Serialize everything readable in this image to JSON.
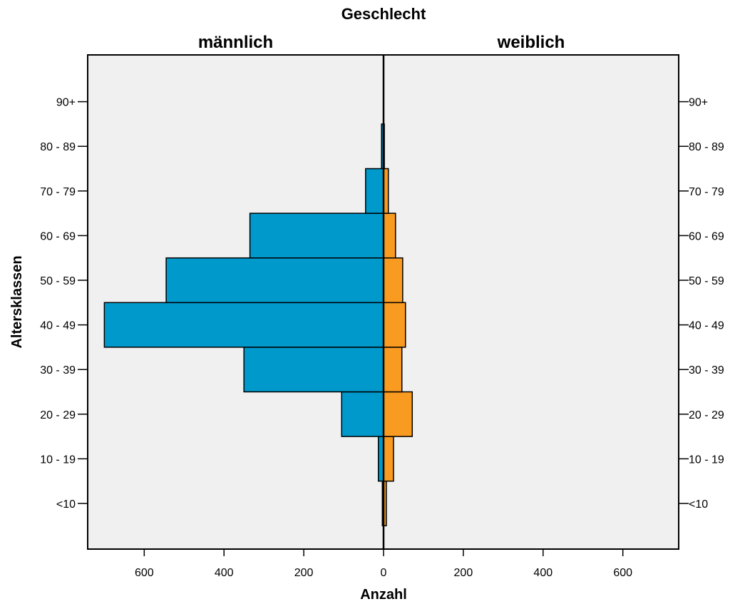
{
  "chart_data": {
    "type": "bar",
    "orientation": "horizontal-population-pyramid",
    "title": "Geschlecht",
    "xlabel": "Anzahl",
    "ylabel": "Altersklassen",
    "categories": [
      "<10",
      "10 - 19",
      "20 - 29",
      "30 - 39",
      "40 - 49",
      "50 - 59",
      "60 - 69",
      "70 - 79",
      "80 - 89",
      "90+"
    ],
    "series": [
      {
        "name": "männlich",
        "color": "#0099cc",
        "values": [
          3,
          13,
          105,
          350,
          700,
          545,
          335,
          45,
          5,
          0
        ]
      },
      {
        "name": "weiblich",
        "color": "#f99b21",
        "values": [
          7,
          25,
          72,
          46,
          55,
          48,
          30,
          12,
          2,
          0
        ]
      }
    ],
    "x_ticks": [
      0,
      200,
      400,
      600
    ],
    "xlim": [
      -740,
      740
    ],
    "background": "#f0f0f0",
    "grid": false
  }
}
